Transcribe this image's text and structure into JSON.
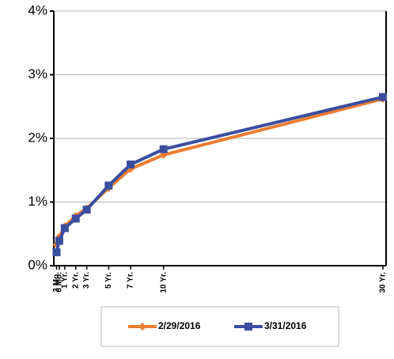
{
  "chart_data": {
    "type": "line",
    "categories": [
      "3 Mo.",
      "6 Mo.",
      "1 Yr.",
      "2 Yr.",
      "3 Yr.",
      "5 Yr.",
      "7 Yr.",
      "10 Yr.",
      "30 Yr."
    ],
    "x": [
      0.25,
      0.5,
      1,
      2,
      3,
      5,
      7,
      10,
      30
    ],
    "xlim": [
      0,
      30
    ],
    "series": [
      {
        "name": "2/29/2016",
        "color": "#ed7d31",
        "marker": "diamond",
        "values": [
          0.33,
          0.45,
          0.62,
          0.78,
          0.9,
          1.22,
          1.52,
          1.74,
          2.62
        ]
      },
      {
        "name": "3/31/2016",
        "color": "#3a4ea0",
        "marker": "square",
        "values": [
          0.21,
          0.39,
          0.59,
          0.74,
          0.88,
          1.26,
          1.59,
          1.83,
          2.65
        ]
      }
    ],
    "ylim": [
      0,
      4
    ],
    "yticks": [
      {
        "value": 0,
        "label": "0%"
      },
      {
        "value": 1,
        "label": "1%"
      },
      {
        "value": 2,
        "label": "2%"
      },
      {
        "value": 3,
        "label": "3%"
      },
      {
        "value": 4,
        "label": "4%"
      }
    ],
    "grid": true,
    "legend": "bottom"
  }
}
